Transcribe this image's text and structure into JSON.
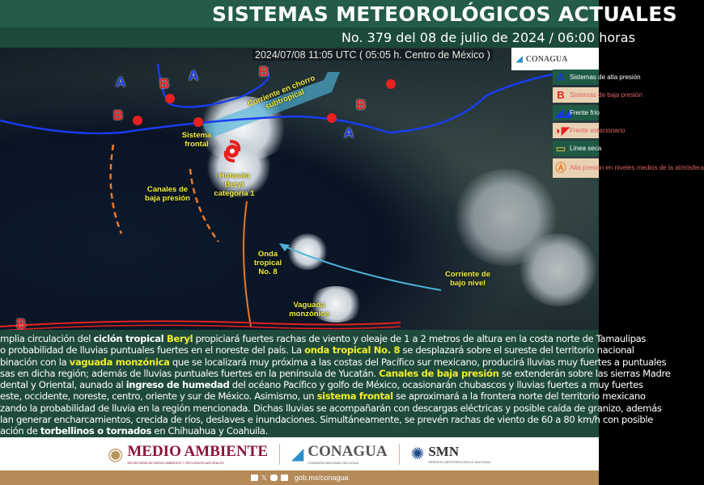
{
  "header": {
    "title": "SISTEMAS METEOROLÓGICOS ACTUALES",
    "subtitle": "No. 379 del 08 de julio de 2024 / 06:00 horas"
  },
  "map": {
    "timestamp": "2024/07/08 11:05 UTC ( 05:05 h. Centro de México )",
    "logo": "CONAGUA",
    "labels": {
      "jet": "Corriente en chorro subtropical",
      "front": "Sistema frontal",
      "hurricane": "Huracán Beryl categoría 1",
      "channels": "Canales de baja presión",
      "wave": "Onda tropical No. 8",
      "lowlevel": "Corriente de bajo nivel",
      "monsoon": "Vaguada monzónica"
    },
    "pressure": {
      "high": "A",
      "low": "B"
    },
    "colors": {
      "high": "#1637e8",
      "low": "#e82020",
      "label": "#f2ef3a",
      "jet": "#4fb4d8",
      "channels": "#e87a2a"
    }
  },
  "legend": [
    {
      "icon": "A",
      "label": "Sistemas de alta presión"
    },
    {
      "icon": "B",
      "label": "Sistemas de baja presión"
    },
    {
      "icon": "cold-front",
      "label": "Frente frío"
    },
    {
      "icon": "stationary-front",
      "label": "Frente estacionario"
    },
    {
      "icon": "dry-line",
      "label": "Línea seca"
    },
    {
      "icon": "mid-level-high",
      "label": "Alta presión en niveles medios de la atmósfera"
    }
  ],
  "text": {
    "lines": [
      [
        [
          "mplia circulación del ",
          ""
        ],
        [
          "ciclón tropical ",
          "bd"
        ],
        [
          "Beryl",
          "hl"
        ],
        [
          " propiciará fuertes rachas de viento y oleaje de 1 a 2 metros de altura en la costa norte de Tamaulipas",
          ""
        ]
      ],
      [
        [
          "o probabilidad de lluvias puntuales fuertes en el noreste del país. La ",
          ""
        ],
        [
          "onda tropical No. 8",
          "hl"
        ],
        [
          " se desplazará sobre el sureste del territorio nacional",
          ""
        ]
      ],
      [
        [
          "binación con la ",
          ""
        ],
        [
          "vaguada monzónica",
          "hl"
        ],
        [
          " que se localizará muy próxima a las costas del Pacífico sur mexicano, producirá lluvias muy fuertes a puntuales",
          ""
        ]
      ],
      [
        [
          "sas en dicha región; además de lluvias puntuales fuertes en la península de Yucatán. ",
          ""
        ],
        [
          "Canales de baja presión",
          "hl"
        ],
        [
          " se extenderán sobre las sierras Madre",
          ""
        ]
      ],
      [
        [
          "dental y Oriental, aunado al ",
          ""
        ],
        [
          "ingreso de humedad",
          "bd"
        ],
        [
          " del océano Pacífico y golfo de México, ocasionarán chubascos y lluvias fuertes a muy fuertes",
          ""
        ]
      ],
      [
        [
          "este, occidente, noreste, centro, oriente y sur de México. Asimismo, un ",
          ""
        ],
        [
          "sistema frontal",
          "hl"
        ],
        [
          " se aproximará a la frontera norte del territorio mexicano",
          ""
        ]
      ],
      [
        [
          "zando la probabilidad de lluvia en la región mencionada. Dichas lluvias se acompañarán con descargas eléctricas y posible caída de granizo, además",
          ""
        ]
      ],
      [
        [
          "lan generar encharcamientos, crecida de ríos, deslaves e inundaciones. Simultáneamente, se prevén rachas de viento de 60 a 80 km/h con posible",
          ""
        ]
      ],
      [
        [
          "ación de ",
          ""
        ],
        [
          "torbellinos o tornados",
          "bd"
        ],
        [
          " en Chihuahua y Coahuila.",
          ""
        ]
      ]
    ]
  },
  "logos": {
    "ma": "MEDIO AMBIENTE",
    "ma_sub": "SECRETARÍA DE MEDIO AMBIENTE Y RECURSOS NATURALES",
    "cg": "CONAGUA",
    "cg_sub": "COMISIÓN NACIONAL DEL AGUA",
    "smn": "SMN",
    "smn_sub": "SERVICIO METEOROLÓGICO NACIONAL"
  },
  "footer": {
    "url": "gob.mx/conagua",
    "social": [
      "facebook-icon",
      "x-icon",
      "instagram-icon",
      "youtube-icon"
    ]
  }
}
